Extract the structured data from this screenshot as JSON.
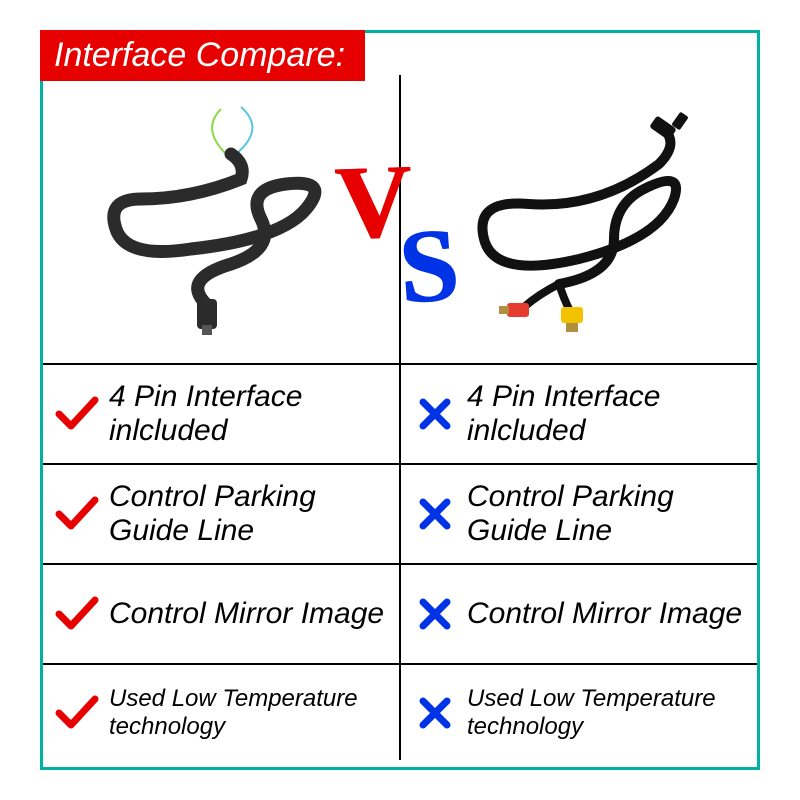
{
  "title": "Interface Compare:",
  "colors": {
    "border": "#00b3a0",
    "banner_bg": "#e60000",
    "banner_text": "#ffffff",
    "check": "#e60000",
    "cross": "#0033e6",
    "vs_v": "#e60000",
    "vs_s": "#0033e6",
    "text": "#000000",
    "grid": "#000000"
  },
  "vs": {
    "v": "V",
    "s": "S"
  },
  "left_product": {
    "name": "4-pin-cable",
    "cable_color": "#2b2b2b",
    "wire_colors": [
      "#8fd94a",
      "#55c6e0"
    ]
  },
  "right_product": {
    "name": "rca-cable",
    "cable_color": "#111111",
    "connector_colors": {
      "red": "#e63b2e",
      "yellow": "#f2c200",
      "metal": "#b09040"
    }
  },
  "features": [
    {
      "left_has": true,
      "right_has": false,
      "text": "4 Pin Interface inlcluded",
      "size": "normal"
    },
    {
      "left_has": true,
      "right_has": false,
      "text": "Control Parking Guide Line",
      "size": "normal"
    },
    {
      "left_has": true,
      "right_has": false,
      "text": "Control Mirror Image",
      "size": "normal"
    },
    {
      "left_has": true,
      "right_has": false,
      "text": "Used Low Temperature technology",
      "size": "small"
    }
  ]
}
